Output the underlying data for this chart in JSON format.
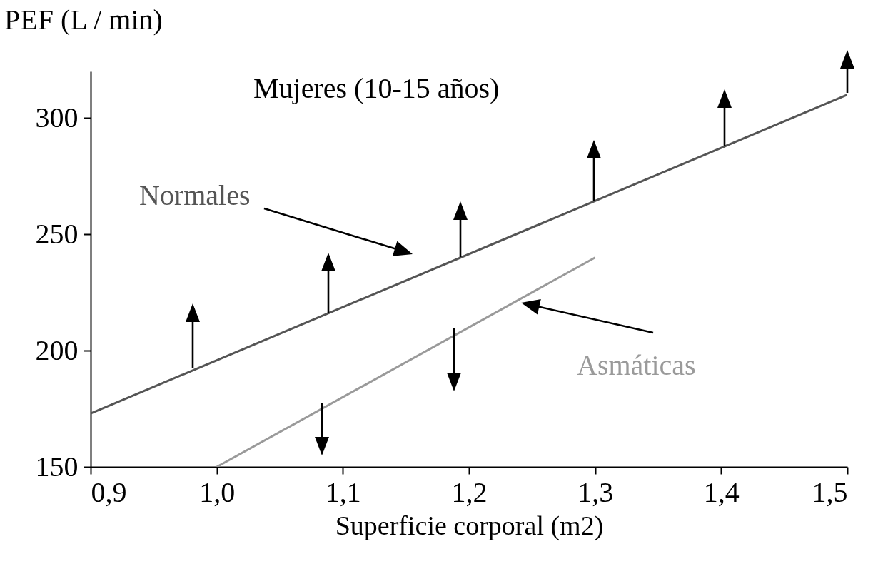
{
  "chart_data": {
    "type": "line",
    "title": "Mujeres (10-15 años)",
    "xlabel": "Superficie corporal (m2)",
    "ylabel": "PEF (L / min)",
    "xlim": [
      0.9,
      1.5
    ],
    "xticks": [
      {
        "value": 0.9,
        "label": "0,9"
      },
      {
        "value": 1.0,
        "label": "1,0"
      },
      {
        "value": 1.1,
        "label": "1,1"
      },
      {
        "value": 1.2,
        "label": "1,2"
      },
      {
        "value": 1.3,
        "label": "1,3"
      },
      {
        "value": 1.4,
        "label": "1,4"
      },
      {
        "value": 1.5,
        "label": "1,5"
      }
    ],
    "ylim": [
      150,
      320
    ],
    "yticks": [
      150,
      200,
      250,
      300
    ],
    "grid": false,
    "legend": false,
    "marker": "none",
    "line_style": "solid",
    "series": [
      {
        "name": "Normales",
        "color": "#555555",
        "x": [
          0.9,
          1.5
        ],
        "values": [
          173,
          310
        ]
      },
      {
        "name": "Asmáticas",
        "color": "#9a9a9a",
        "x": [
          1.0,
          1.3
        ],
        "values": [
          150,
          240
        ]
      }
    ]
  }
}
